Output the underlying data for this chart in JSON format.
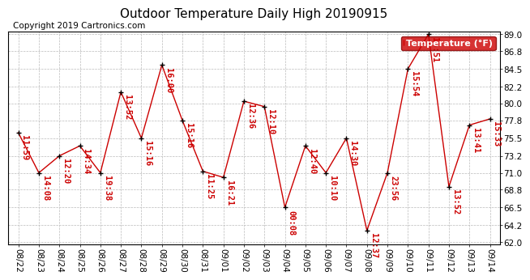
{
  "title": "Outdoor Temperature Daily High 20190915",
  "copyright_text": "Copyright 2019 Cartronics.com",
  "legend_label": "Temperature (°F)",
  "dates": [
    "08/22",
    "08/23",
    "08/24",
    "08/25",
    "08/26",
    "08/27",
    "08/28",
    "08/29",
    "08/30",
    "08/31",
    "09/01",
    "09/02",
    "09/03",
    "09/04",
    "09/05",
    "09/06",
    "09/07",
    "09/08",
    "09/09",
    "09/10",
    "09/11",
    "09/12",
    "09/13",
    "09/14"
  ],
  "values": [
    76.2,
    71.0,
    73.2,
    74.5,
    71.0,
    81.5,
    75.5,
    85.0,
    77.8,
    71.2,
    70.4,
    80.3,
    79.6,
    66.5,
    74.5,
    71.0,
    75.5,
    63.5,
    71.0,
    84.5,
    89.0,
    69.2,
    77.2,
    78.0
  ],
  "times": [
    "11:59",
    "14:08",
    "12:20",
    "14:34",
    "19:38",
    "13:52",
    "15:16",
    "16:00",
    "15:16",
    "11:25",
    "16:21",
    "12:36",
    "12:10",
    "00:08",
    "12:40",
    "10:10",
    "14:30",
    "12:37",
    "23:56",
    "15:54",
    "15:51",
    "13:52",
    "13:41",
    "15:33"
  ],
  "ylim": [
    62.0,
    89.0
  ],
  "yticks": [
    62.0,
    64.2,
    66.5,
    68.8,
    71.0,
    73.2,
    75.5,
    77.8,
    80.0,
    82.2,
    84.5,
    86.8,
    89.0
  ],
  "line_color": "#cc0000",
  "marker_color": "#000000",
  "bg_color": "#ffffff",
  "grid_color": "#bbbbbb",
  "legend_bg": "#cc0000",
  "legend_text_color": "#ffffff",
  "title_fontsize": 11,
  "copyright_fontsize": 7.5,
  "label_fontsize": 7.5,
  "annot_fontsize": 7.5
}
